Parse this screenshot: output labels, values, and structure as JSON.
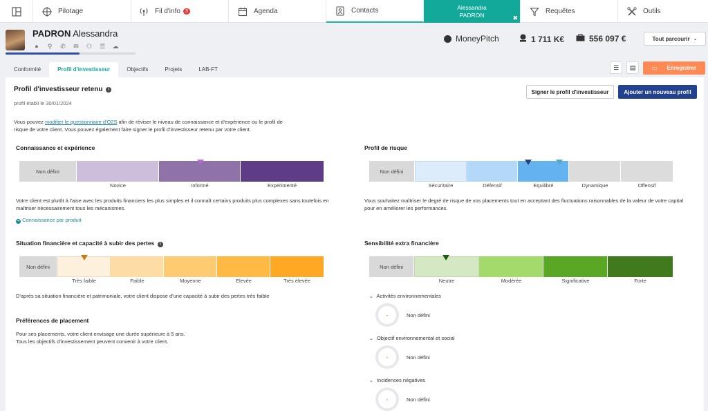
{
  "nav": {
    "items": [
      {
        "label": "",
        "icon": "dashboard-icon"
      },
      {
        "label": "Pilotage",
        "icon": "crosshair-icon"
      },
      {
        "label": "Fil d'info",
        "icon": "broadcast-icon",
        "badge": "3"
      },
      {
        "label": "Agenda",
        "icon": "calendar-icon"
      },
      {
        "label": "Contacts",
        "icon": "contacts-icon"
      },
      {
        "label": "Alessandra",
        "label2": "PADRON",
        "icon": "close-icon"
      },
      {
        "label": "Requêtes",
        "icon": "filter-icon"
      },
      {
        "label": "Outils",
        "icon": "tools-icon"
      }
    ]
  },
  "client": {
    "last_name": "PADRON",
    "first_name": "Alessandra",
    "progress": 0.57,
    "moneypitch_label": "MoneyPitch",
    "stat1": "1 711 K€",
    "stat2": "556 097 €",
    "browse_label": "Tout parcourir"
  },
  "tabs": [
    "Conformité",
    "Profil d'investisseur",
    "Objectifs",
    "Projets",
    "LAB-FT"
  ],
  "toolbar": {
    "save_label": "Enregistrer"
  },
  "profile": {
    "title": "Profil d'investisseur retenu",
    "date": "profil établi le 30/01/2024",
    "sign_label": "Signer le profil d'investisseur",
    "add_label": "Ajouter un nouveau profil",
    "intro_before": "Vous pouvez ",
    "intro_link": "modifier le questionnaire d'O2S",
    "intro_after": " afin de réviser le niveau de connaissance et d'expérience ou le profil de",
    "intro_line2": "risque de votre client. Vous pouvez également faire signer le profil d'investisseur retenu par votre client."
  },
  "knowledge": {
    "title": "Connaissance et expérience",
    "nd": "Non défini",
    "levels": [
      "Novice",
      "Informé",
      "Expérimenté"
    ],
    "selected": "Informé",
    "text1": "Votre client est plutôt à l'aise avec les produits financiers les plus simples et il connaît certains produits plus complexes sans toutefois en",
    "text2": "maîtriser nécessairement tous les mécanismes.",
    "link": "Connaissance par produit"
  },
  "risk": {
    "title": "Profil de risque",
    "nd": "Non défini",
    "levels": [
      "Sécuritaire",
      "Défensif",
      "Equilibré",
      "Dynamique",
      "Offensif"
    ],
    "selected": "Equilibré",
    "text1": "Vous souhaitez maîtriser le degré de risque de vos placements tout en acceptant des fluctuations raisonnables de la valeur de votre capital",
    "text2": "pour en améliorer les performances."
  },
  "financial": {
    "title": "Situation financière et capacité à subir des pertes",
    "nd": "Non défini",
    "levels": [
      "Très faible",
      "Faible",
      "Moyenne",
      "Elevée",
      "Très élevée"
    ],
    "selected": "Très faible",
    "text": "D'après sa situation financière et patrimoniale, votre client dispose d'une capacité à subir des pertes très faible"
  },
  "extra": {
    "title": "Sensibilité extra financière",
    "nd": "Non défini",
    "levels": [
      "Neutre",
      "Modérée",
      "Significative",
      "Forte"
    ],
    "selected": "Neutre",
    "items": [
      {
        "label": "Activités environnementales",
        "value": "-",
        "status": "Non défini"
      },
      {
        "label": "Objectif environnemental et social",
        "value": "-",
        "status": "Non défini"
      },
      {
        "label": "Incidences négatives",
        "value": "-",
        "status": "Non défini"
      }
    ]
  },
  "preferences": {
    "title": "Préférences de placement",
    "line1": "Pour ses placements, votre client envisage une durée supérieure à 5 ans.",
    "line2": "Tous les objectifs d'investissement peuvent convenir à votre client."
  },
  "colors": {
    "teal": "#12a99a",
    "navy": "#22418f",
    "orange": "#ff8a55"
  }
}
